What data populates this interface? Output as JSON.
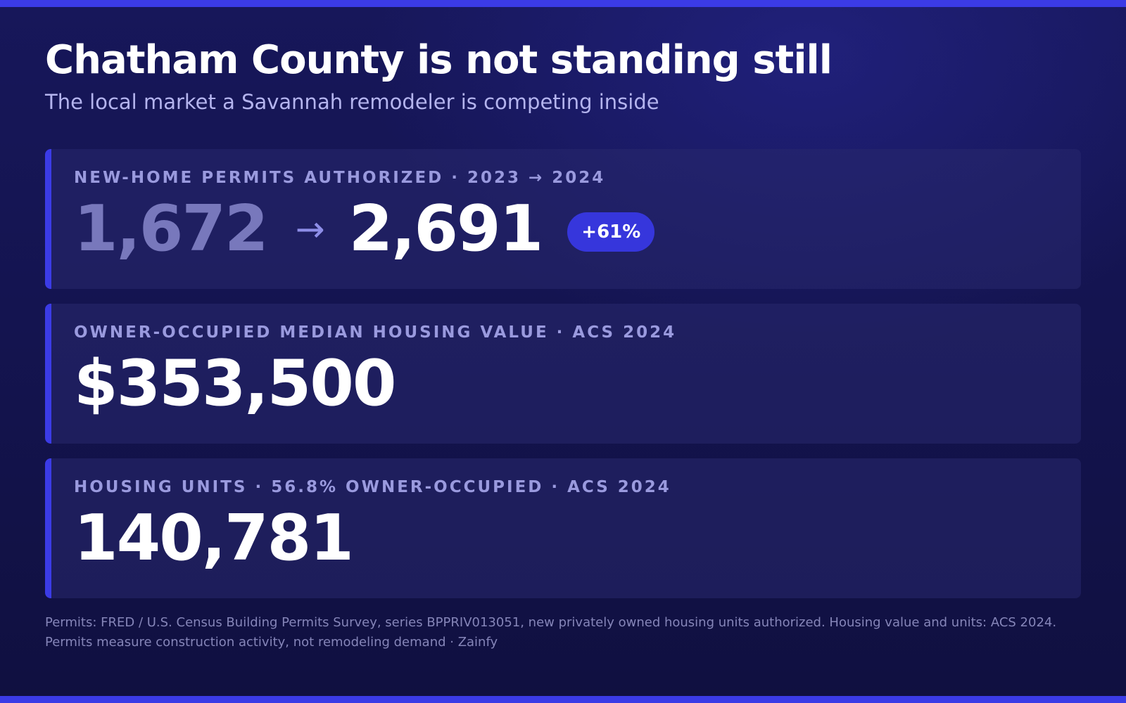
{
  "header": {
    "title": "Chatham County is not standing still",
    "subtitle": "The local market a Savannah remodeler is competing inside"
  },
  "cards": [
    {
      "label": "NEW-HOME PERMITS AUTHORIZED · 2023 → 2024",
      "value_from": "1,672",
      "arrow": "→",
      "value_to": "2,691",
      "badge": "+61%"
    },
    {
      "label": "OWNER-OCCUPIED MEDIAN HOUSING VALUE · ACS 2024",
      "value": "$353,500"
    },
    {
      "label": "HOUSING UNITS · 56.8% OWNER-OCCUPIED · ACS 2024",
      "value": "140,781"
    }
  ],
  "footer": {
    "text": "Permits: FRED / U.S. Census Building Permits Survey, series BPPRIV013051, new privately owned housing units authorized. Housing value and units: ACS 2024. Permits measure construction activity, not remodeling demand · Zainfy"
  },
  "colors": {
    "accent": "#3b3be6",
    "background": "#141450",
    "label": "#9a9ade",
    "faded_value": "#7878bc"
  }
}
